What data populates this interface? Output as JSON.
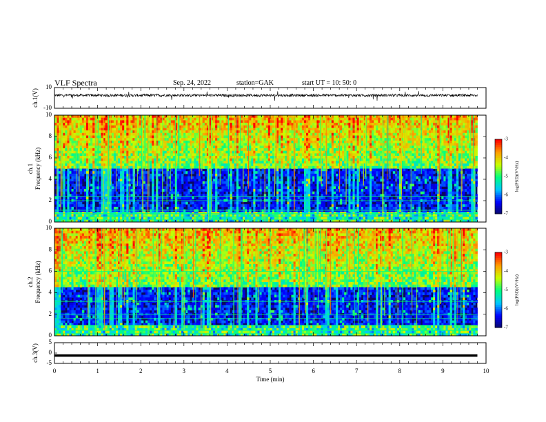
{
  "header": {
    "title": "VLF Spectra",
    "date": "Sep. 24, 2022",
    "station": "station=GAK",
    "start": "start UT =  10: 50: 0"
  },
  "colors": {
    "ch1_trace": "#000000",
    "ch3_line": "#000000",
    "spectrogram_background": "#0a0a60",
    "colormap": [
      "#0a0a60",
      "#0000ff",
      "#00c8ff",
      "#00ff80",
      "#c8ff00",
      "#ffa000",
      "#ff0000",
      "#ffffff"
    ]
  },
  "chart_data": [
    {
      "type": "line",
      "panel": "ch1-waveform",
      "ylabel": "ch.1(V)",
      "ylim": [
        -10,
        10
      ],
      "yticks": [
        "10",
        "-10"
      ],
      "xlim": [
        0,
        10
      ],
      "baseline_v": 2.5,
      "description_of_values": "noisy waveform fluctuating around +2.5 V with occasional spikes"
    },
    {
      "type": "heatmap",
      "panel": "ch1-spectrogram",
      "ylabel": "ch.1\nFrequency (kHz)",
      "ylim": [
        0,
        10
      ],
      "yticks": [
        "0",
        "2",
        "4",
        "6",
        "8",
        "10"
      ],
      "xlim": [
        0,
        9.8
      ],
      "colorbar": {
        "label": "log(PSD)(V²/Hz)",
        "range": [
          -7,
          -3
        ],
        "ticks": [
          "-3",
          "-4",
          "-5",
          "-6",
          "-7"
        ]
      },
      "bright_lines_khz": [
        0.2,
        0.5,
        0.8,
        1.1,
        2.0,
        2.4
      ],
      "noise_floor_khz": 5
    },
    {
      "type": "heatmap",
      "panel": "ch2-spectrogram",
      "ylabel": "ch.2\nFrequency (kHz)",
      "ylim": [
        0,
        10
      ],
      "yticks": [
        "0",
        "2",
        "4",
        "6",
        "8",
        "10"
      ],
      "xlim": [
        0,
        9.8
      ],
      "colorbar": {
        "label": "log(PSD)(V²/Hz)",
        "range": [
          -7,
          -3
        ],
        "ticks": [
          "-3",
          "-4",
          "-5",
          "-6",
          "-7"
        ]
      },
      "bright_lines_khz": [
        0.2,
        0.5,
        1.0,
        1.6,
        2.0,
        3.2,
        6.0
      ],
      "noise_floor_khz": 4.5
    },
    {
      "type": "line",
      "panel": "ch3-waveform",
      "ylabel": "ch.3(V)",
      "ylim": [
        -5,
        5
      ],
      "yticks": [
        "5",
        "0",
        "-5"
      ],
      "xlim": [
        0,
        10
      ],
      "constant_v": -1.2
    }
  ],
  "xaxis": {
    "label": "Time (min)",
    "ticks": [
      "0",
      "1",
      "2",
      "3",
      "4",
      "5",
      "6",
      "7",
      "8",
      "9",
      "10"
    ]
  }
}
